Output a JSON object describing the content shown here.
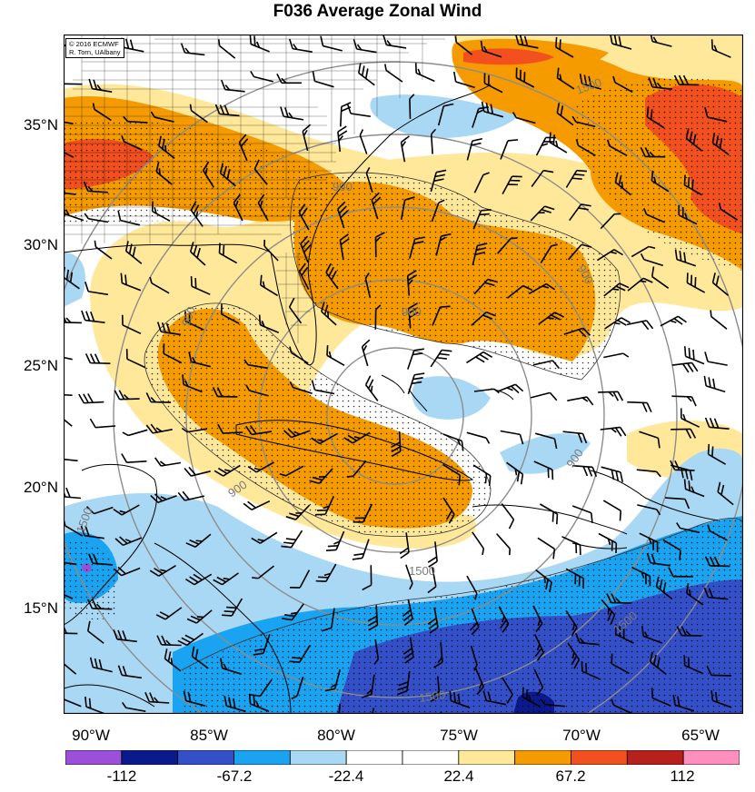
{
  "title": "F036 Average Zonal Wind",
  "credit": [
    "© 2016 ECMWF",
    "R. Torn, UAlbany"
  ],
  "lat_labels": [
    "35°N",
    "30°N",
    "25°N",
    "20°N",
    "15°N"
  ],
  "lon_labels": [
    "90°W",
    "85°W",
    "80°W",
    "75°W",
    "70°W",
    "65°W"
  ],
  "colorbar": {
    "labels": [
      "-112",
      "-67.2",
      "-22.4",
      "22.4",
      "67.2",
      "112"
    ],
    "colors": [
      "#9c4fd8",
      "#0a1a8c",
      "#3350c8",
      "#1aa3f0",
      "#a9d8f5",
      "#ffffff",
      "#ffffff",
      "#ffe89a",
      "#f59b00",
      "#f2501e",
      "#b8201c",
      "#ff8fbf"
    ]
  },
  "contour_labels": [
    "1500",
    "900",
    "900",
    "900",
    "900",
    "900",
    "900",
    "1500",
    "1500",
    "1500",
    "1500"
  ],
  "palette": {
    "dark_orange": "#f59b00",
    "light_orange": "#ffe89a",
    "red": "#f2501e",
    "light_blue": "#a9d8f5",
    "blue": "#1aa3f0",
    "dark_blue": "#3350c8",
    "navy": "#0a1a8c",
    "purple": "#9c4fd8",
    "contour": "#8c8c8c"
  }
}
